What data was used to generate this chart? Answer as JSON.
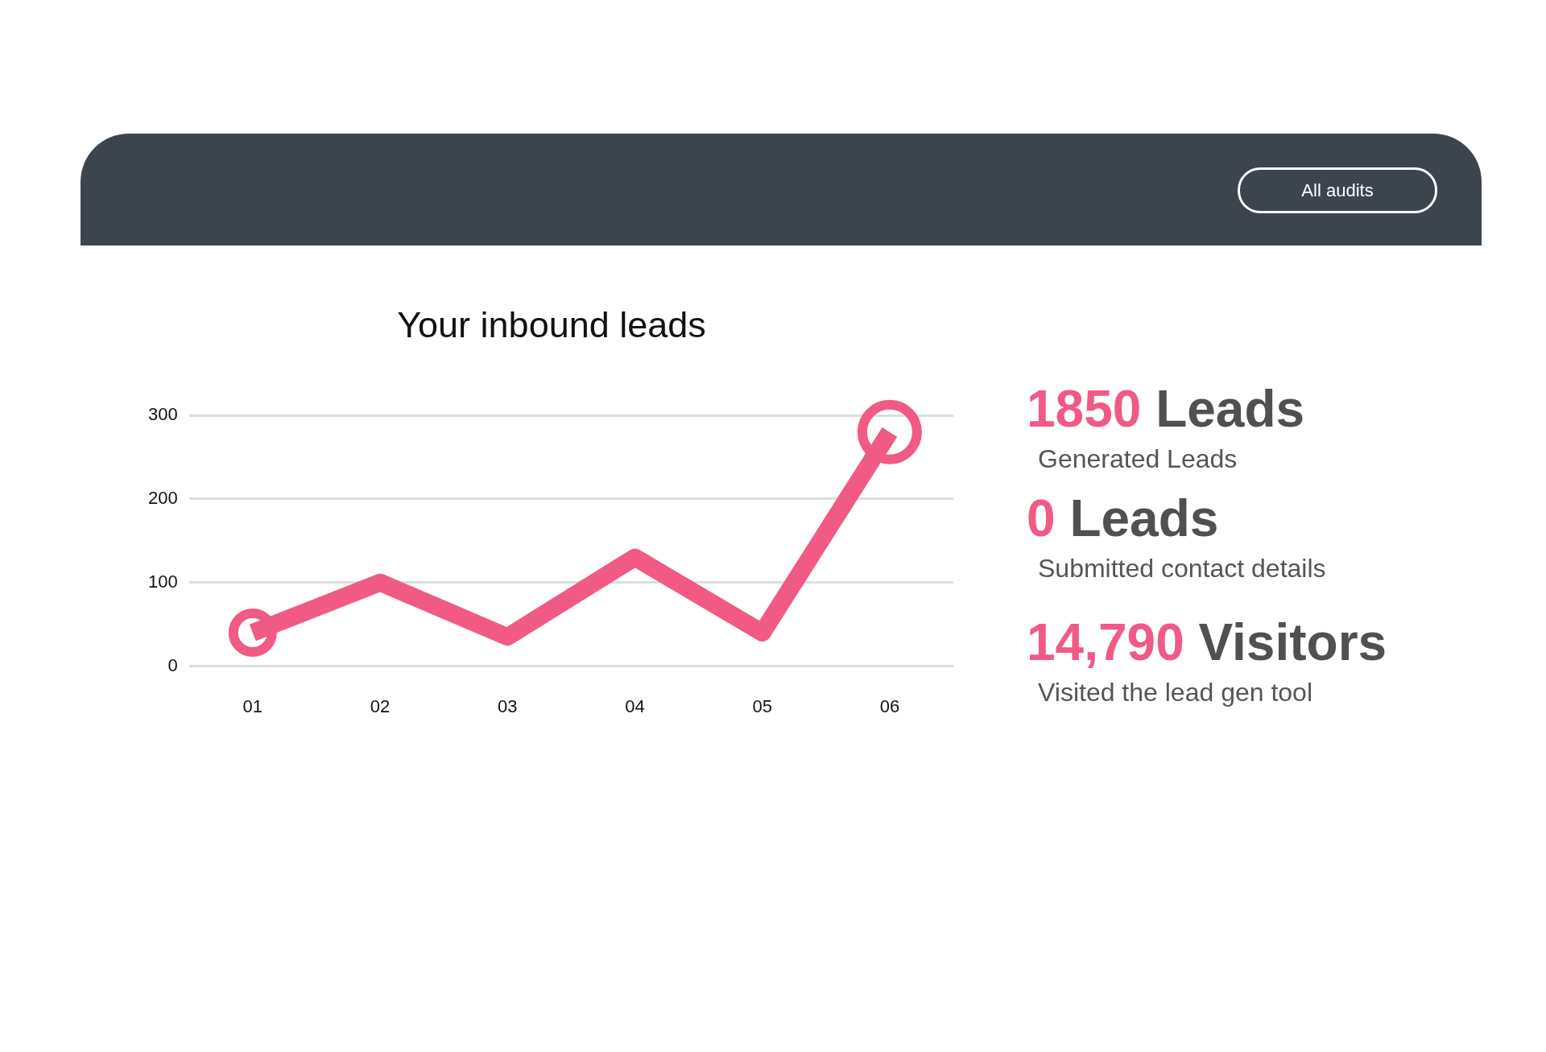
{
  "chart_data": {
    "type": "line",
    "title": "Your inbound leads",
    "categories": [
      "01",
      "02",
      "03",
      "04",
      "05",
      "06"
    ],
    "series": [
      {
        "color": "#f05a84",
        "marker": "none",
        "values": [
          40,
          100,
          35,
          130,
          40,
          280
        ]
      },
      {
        "type": "scatter",
        "color": "#f05a84",
        "x": [
          "01",
          "06"
        ],
        "values": [
          40,
          280
        ]
      }
    ],
    "ylim": [
      0,
      300
    ],
    "yticks": [
      0,
      100,
      200,
      300
    ],
    "grid": "y",
    "legend": false,
    "marker": "circle",
    "line_style": "solid",
    "annotations": [
      "All audits",
      "1850 Leads",
      "Generated Leads",
      "0 Leads",
      "Submitted contact details",
      "14,790 Visitors",
      "Visited the lead gen tool"
    ]
  }
}
